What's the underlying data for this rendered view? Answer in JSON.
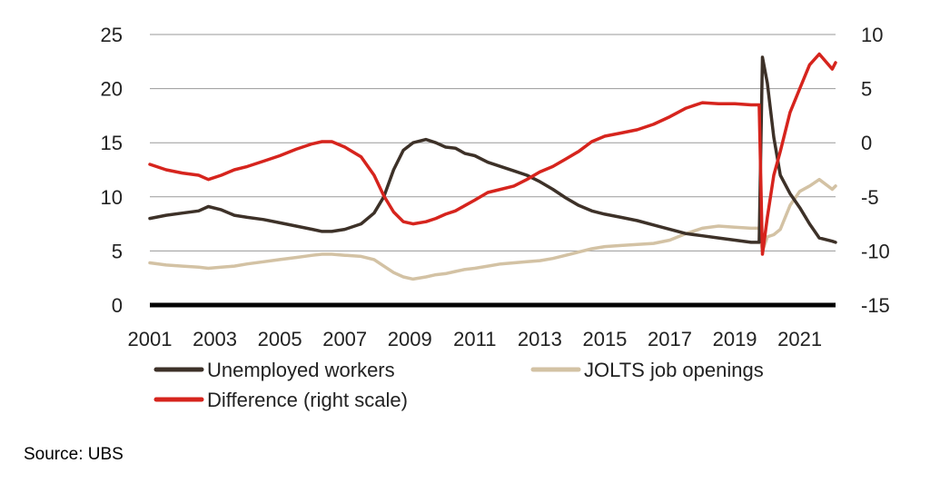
{
  "chart_data": {
    "type": "line",
    "title": "",
    "xlabel": "",
    "ylabel": "",
    "grid": true,
    "legend_placement": "bottom",
    "source": "Source: UBS",
    "x_ticks": [
      "2001",
      "2003",
      "2005",
      "2007",
      "2009",
      "2011",
      "2013",
      "2015",
      "2017",
      "2019",
      "2021"
    ],
    "xlim": [
      2001,
      2022.1
    ],
    "y_left": {
      "ticks": [
        "0",
        "5",
        "10",
        "15",
        "20",
        "25"
      ],
      "ylim": [
        0,
        25
      ]
    },
    "y_right": {
      "ticks": [
        "-15",
        "-10",
        "-5",
        "0",
        "5",
        "10"
      ],
      "ylim": [
        -15,
        10
      ]
    },
    "series": [
      {
        "name": "Unemployed workers",
        "axis": "left",
        "color": "#3d3128",
        "points": [
          [
            2001.0,
            8.0
          ],
          [
            2001.5,
            8.3
          ],
          [
            2002.0,
            8.5
          ],
          [
            2002.5,
            8.7
          ],
          [
            2002.8,
            9.1
          ],
          [
            2003.2,
            8.8
          ],
          [
            2003.6,
            8.3
          ],
          [
            2004.0,
            8.1
          ],
          [
            2004.5,
            7.9
          ],
          [
            2005.0,
            7.6
          ],
          [
            2005.5,
            7.3
          ],
          [
            2006.0,
            7.0
          ],
          [
            2006.3,
            6.8
          ],
          [
            2006.6,
            6.8
          ],
          [
            2007.0,
            7.0
          ],
          [
            2007.5,
            7.5
          ],
          [
            2007.9,
            8.5
          ],
          [
            2008.2,
            10.0
          ],
          [
            2008.5,
            12.5
          ],
          [
            2008.8,
            14.3
          ],
          [
            2009.1,
            15.0
          ],
          [
            2009.5,
            15.3
          ],
          [
            2009.8,
            15.0
          ],
          [
            2010.1,
            14.6
          ],
          [
            2010.4,
            14.5
          ],
          [
            2010.7,
            14.0
          ],
          [
            2011.0,
            13.8
          ],
          [
            2011.4,
            13.2
          ],
          [
            2011.8,
            12.8
          ],
          [
            2012.2,
            12.4
          ],
          [
            2012.6,
            12.0
          ],
          [
            2013.0,
            11.4
          ],
          [
            2013.4,
            10.7
          ],
          [
            2013.8,
            9.9
          ],
          [
            2014.2,
            9.2
          ],
          [
            2014.6,
            8.7
          ],
          [
            2015.0,
            8.4
          ],
          [
            2015.5,
            8.1
          ],
          [
            2016.0,
            7.8
          ],
          [
            2016.5,
            7.4
          ],
          [
            2017.0,
            7.0
          ],
          [
            2017.5,
            6.6
          ],
          [
            2018.0,
            6.4
          ],
          [
            2018.5,
            6.2
          ],
          [
            2019.0,
            6.0
          ],
          [
            2019.5,
            5.8
          ],
          [
            2019.75,
            5.8
          ],
          [
            2019.85,
            22.9
          ],
          [
            2020.0,
            20.5
          ],
          [
            2020.2,
            15.5
          ],
          [
            2020.4,
            12.0
          ],
          [
            2020.7,
            10.3
          ],
          [
            2021.0,
            9.0
          ],
          [
            2021.3,
            7.5
          ],
          [
            2021.6,
            6.2
          ],
          [
            2022.0,
            5.9
          ],
          [
            2022.1,
            5.8
          ]
        ]
      },
      {
        "name": "JOLTS job openings",
        "axis": "left",
        "color": "#d3c2a4",
        "points": [
          [
            2001.0,
            3.9
          ],
          [
            2001.5,
            3.7
          ],
          [
            2002.0,
            3.6
          ],
          [
            2002.5,
            3.5
          ],
          [
            2002.8,
            3.4
          ],
          [
            2003.2,
            3.5
          ],
          [
            2003.6,
            3.6
          ],
          [
            2004.0,
            3.8
          ],
          [
            2004.5,
            4.0
          ],
          [
            2005.0,
            4.2
          ],
          [
            2005.5,
            4.4
          ],
          [
            2006.0,
            4.6
          ],
          [
            2006.3,
            4.7
          ],
          [
            2006.6,
            4.7
          ],
          [
            2007.0,
            4.6
          ],
          [
            2007.5,
            4.5
          ],
          [
            2007.9,
            4.2
          ],
          [
            2008.2,
            3.6
          ],
          [
            2008.5,
            3.0
          ],
          [
            2008.8,
            2.6
          ],
          [
            2009.1,
            2.4
          ],
          [
            2009.5,
            2.6
          ],
          [
            2009.8,
            2.8
          ],
          [
            2010.1,
            2.9
          ],
          [
            2010.4,
            3.1
          ],
          [
            2010.7,
            3.3
          ],
          [
            2011.0,
            3.4
          ],
          [
            2011.4,
            3.6
          ],
          [
            2011.8,
            3.8
          ],
          [
            2012.2,
            3.9
          ],
          [
            2012.6,
            4.0
          ],
          [
            2013.0,
            4.1
          ],
          [
            2013.4,
            4.3
          ],
          [
            2013.8,
            4.6
          ],
          [
            2014.2,
            4.9
          ],
          [
            2014.6,
            5.2
          ],
          [
            2015.0,
            5.4
          ],
          [
            2015.5,
            5.5
          ],
          [
            2016.0,
            5.6
          ],
          [
            2016.5,
            5.7
          ],
          [
            2017.0,
            6.0
          ],
          [
            2017.5,
            6.6
          ],
          [
            2018.0,
            7.1
          ],
          [
            2018.5,
            7.3
          ],
          [
            2019.0,
            7.2
          ],
          [
            2019.5,
            7.1
          ],
          [
            2019.75,
            7.1
          ],
          [
            2019.85,
            5.0
          ],
          [
            2020.0,
            6.3
          ],
          [
            2020.2,
            6.5
          ],
          [
            2020.4,
            7.0
          ],
          [
            2020.7,
            9.2
          ],
          [
            2021.0,
            10.5
          ],
          [
            2021.3,
            11.0
          ],
          [
            2021.6,
            11.6
          ],
          [
            2022.0,
            10.7
          ],
          [
            2022.1,
            11.0
          ]
        ]
      },
      {
        "name": "Difference (right scale)",
        "axis": "right",
        "color": "#d6241d",
        "points": [
          [
            2001.0,
            -2.0
          ],
          [
            2001.5,
            -2.5
          ],
          [
            2002.0,
            -2.8
          ],
          [
            2002.5,
            -3.0
          ],
          [
            2002.8,
            -3.4
          ],
          [
            2003.2,
            -3.0
          ],
          [
            2003.6,
            -2.5
          ],
          [
            2004.0,
            -2.2
          ],
          [
            2004.5,
            -1.7
          ],
          [
            2005.0,
            -1.2
          ],
          [
            2005.5,
            -0.6
          ],
          [
            2006.0,
            -0.1
          ],
          [
            2006.3,
            0.1
          ],
          [
            2006.6,
            0.1
          ],
          [
            2007.0,
            -0.4
          ],
          [
            2007.5,
            -1.3
          ],
          [
            2007.9,
            -3.0
          ],
          [
            2008.2,
            -4.9
          ],
          [
            2008.5,
            -6.4
          ],
          [
            2008.8,
            -7.3
          ],
          [
            2009.1,
            -7.5
          ],
          [
            2009.5,
            -7.3
          ],
          [
            2009.8,
            -7.0
          ],
          [
            2010.1,
            -6.6
          ],
          [
            2010.4,
            -6.3
          ],
          [
            2010.7,
            -5.8
          ],
          [
            2011.0,
            -5.3
          ],
          [
            2011.4,
            -4.6
          ],
          [
            2011.8,
            -4.3
          ],
          [
            2012.2,
            -4.0
          ],
          [
            2012.6,
            -3.4
          ],
          [
            2013.0,
            -2.7
          ],
          [
            2013.4,
            -2.2
          ],
          [
            2013.8,
            -1.5
          ],
          [
            2014.2,
            -0.8
          ],
          [
            2014.6,
            0.1
          ],
          [
            2015.0,
            0.6
          ],
          [
            2015.5,
            0.9
          ],
          [
            2016.0,
            1.2
          ],
          [
            2016.5,
            1.7
          ],
          [
            2017.0,
            2.4
          ],
          [
            2017.5,
            3.2
          ],
          [
            2018.0,
            3.7
          ],
          [
            2018.5,
            3.6
          ],
          [
            2019.0,
            3.6
          ],
          [
            2019.5,
            3.5
          ],
          [
            2019.75,
            3.5
          ],
          [
            2019.85,
            -10.3
          ],
          [
            2020.0,
            -6.9
          ],
          [
            2020.2,
            -3.0
          ],
          [
            2020.4,
            -0.8
          ],
          [
            2020.7,
            2.8
          ],
          [
            2021.0,
            5.0
          ],
          [
            2021.3,
            7.2
          ],
          [
            2021.6,
            8.2
          ],
          [
            2022.0,
            6.8
          ],
          [
            2022.1,
            7.4
          ]
        ]
      }
    ]
  }
}
